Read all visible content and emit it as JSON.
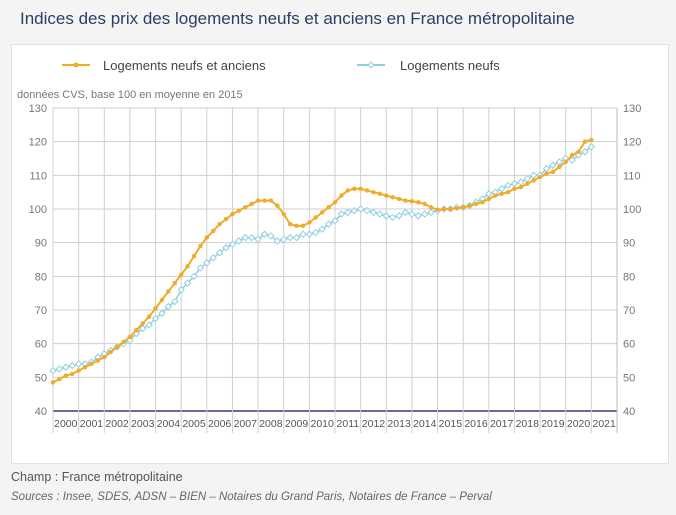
{
  "title": "Indices des prix des logements neufs et anciens en France métropolitaine",
  "footer": {
    "champ": "Champ : France métropolitaine",
    "sources": "Sources : Insee, SDES, ADSN – BIEN – Notaires du Grand Paris, Notaires de France – Perval"
  },
  "colors": {
    "series0": "#f0ab2a",
    "series1": "#8fcfe0",
    "axis": "#6a6a9a"
  },
  "chart_data": {
    "type": "line",
    "subtitle": "données CVS, base 100 en moyenne en 2015",
    "x_tick_labels": [
      "2000",
      "2001",
      "2002",
      "2003",
      "2004",
      "2005",
      "2006",
      "2007",
      "2008",
      "2009",
      "2010",
      "2011",
      "2012",
      "2013",
      "2014",
      "2015",
      "2016",
      "2017",
      "2018",
      "2019",
      "2020",
      "2021"
    ],
    "y_ticks": [
      40,
      50,
      60,
      70,
      80,
      90,
      100,
      110,
      120,
      130
    ],
    "ylim": [
      40,
      130
    ],
    "x_start": "2000-Q1",
    "frequency": "quarterly",
    "grid": true,
    "legend": "top",
    "series": [
      {
        "name": "Logements neufs et anciens",
        "values": [
          48.5,
          49.5,
          50.5,
          51,
          52,
          53,
          54,
          55,
          56,
          57.5,
          59,
          60.5,
          62,
          64,
          66,
          68,
          70.5,
          73,
          75.5,
          78,
          80.5,
          83,
          86,
          89,
          91.5,
          93.5,
          95.5,
          97,
          98.5,
          99.5,
          100.5,
          101.5,
          102.5,
          102.5,
          102.5,
          101,
          98.5,
          95.5,
          95,
          95,
          96,
          97.5,
          99,
          100.5,
          102,
          104,
          105.5,
          106,
          106,
          105.5,
          105,
          104.5,
          104,
          103.5,
          103,
          102.5,
          102.3,
          102,
          101.5,
          100.5,
          99.8,
          100,
          100,
          100.2,
          100.5,
          101,
          101.5,
          102,
          103,
          104,
          104.5,
          105,
          106,
          106.5,
          107.5,
          108.5,
          109.5,
          110.5,
          111,
          112.5,
          114,
          116,
          117,
          120,
          120.5
        ]
      },
      {
        "name": "Logements neufs",
        "values": [
          52,
          52.5,
          53,
          53.5,
          54,
          54,
          54.5,
          56,
          57,
          58,
          59,
          60,
          61,
          63,
          64.5,
          65.5,
          67.5,
          69,
          71,
          72.5,
          76,
          78,
          80,
          82.5,
          84,
          85.5,
          87,
          88.5,
          89.5,
          90.5,
          91.5,
          91.5,
          91,
          92.5,
          92,
          90.5,
          91,
          91.5,
          91.5,
          92.5,
          92.5,
          93,
          94,
          95.5,
          96.5,
          98.5,
          99,
          99.5,
          100,
          99.5,
          99,
          98.5,
          98,
          97.5,
          98,
          99,
          98.5,
          98,
          98.5,
          99,
          99.5,
          100,
          100,
          100.5,
          100.5,
          101,
          102,
          103,
          104.5,
          105,
          106,
          107,
          107.5,
          108,
          109,
          110,
          110,
          112,
          113,
          114,
          115,
          114.5,
          116,
          117,
          118.5
        ]
      }
    ]
  }
}
